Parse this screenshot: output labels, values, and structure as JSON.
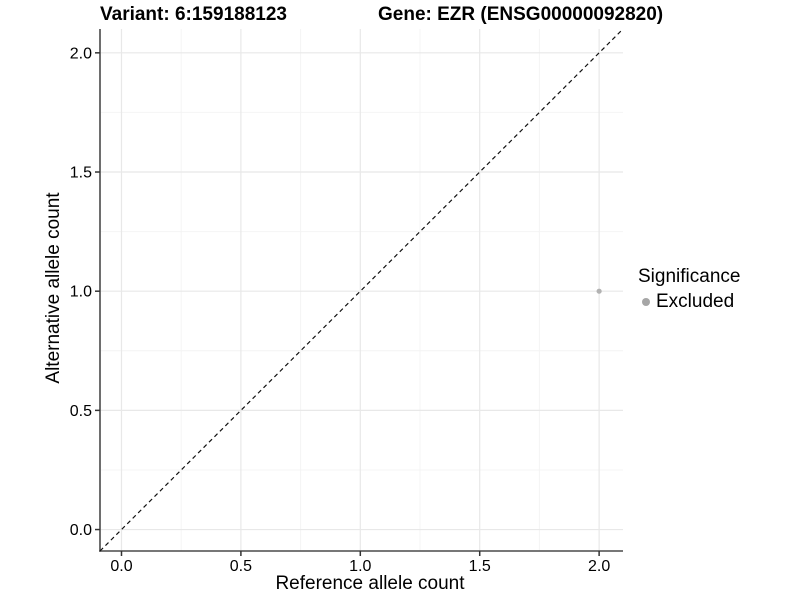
{
  "chart_data": {
    "type": "scatter",
    "title_variant": "Variant: 6:159188123",
    "title_gene": "Gene: EZR (ENSG00000092820)",
    "xlabel": "Reference allele count",
    "ylabel": "Alternative allele count",
    "xlim": [
      -0.09,
      2.1
    ],
    "ylim": [
      -0.09,
      2.1
    ],
    "x_ticks": [
      {
        "v": 0.0,
        "label": "0.0"
      },
      {
        "v": 0.5,
        "label": "0.5"
      },
      {
        "v": 1.0,
        "label": "1.0"
      },
      {
        "v": 1.5,
        "label": "1.5"
      },
      {
        "v": 2.0,
        "label": "2.0"
      }
    ],
    "y_ticks": [
      {
        "v": 0.0,
        "label": "0.0"
      },
      {
        "v": 0.5,
        "label": "0.5"
      },
      {
        "v": 1.0,
        "label": "1.0"
      },
      {
        "v": 1.5,
        "label": "1.5"
      },
      {
        "v": 2.0,
        "label": "2.0"
      }
    ],
    "minor_ticks": [
      0.25,
      0.75,
      1.25,
      1.75
    ],
    "grid": "major+minor",
    "reference_line": {
      "type": "identity",
      "style": "dashed",
      "from": [
        -0.09,
        -0.09
      ],
      "to": [
        2.1,
        2.1
      ],
      "color": "#111111"
    },
    "series": [
      {
        "name": "Excluded",
        "color": "#b2b2b2",
        "points": [
          {
            "x": 2.0,
            "y": 1.0
          }
        ]
      }
    ],
    "legend": {
      "title": "Significance",
      "position": "right",
      "items": [
        {
          "label": "Excluded",
          "color": "#a6a6a6"
        }
      ]
    },
    "colors": {
      "background": "#ffffff",
      "grid_major": "#e8e8e8",
      "grid_minor": "#f4f4f4",
      "axis_line": "#4a4a4a",
      "tick_mark": "#333333",
      "text": "#000000"
    }
  }
}
